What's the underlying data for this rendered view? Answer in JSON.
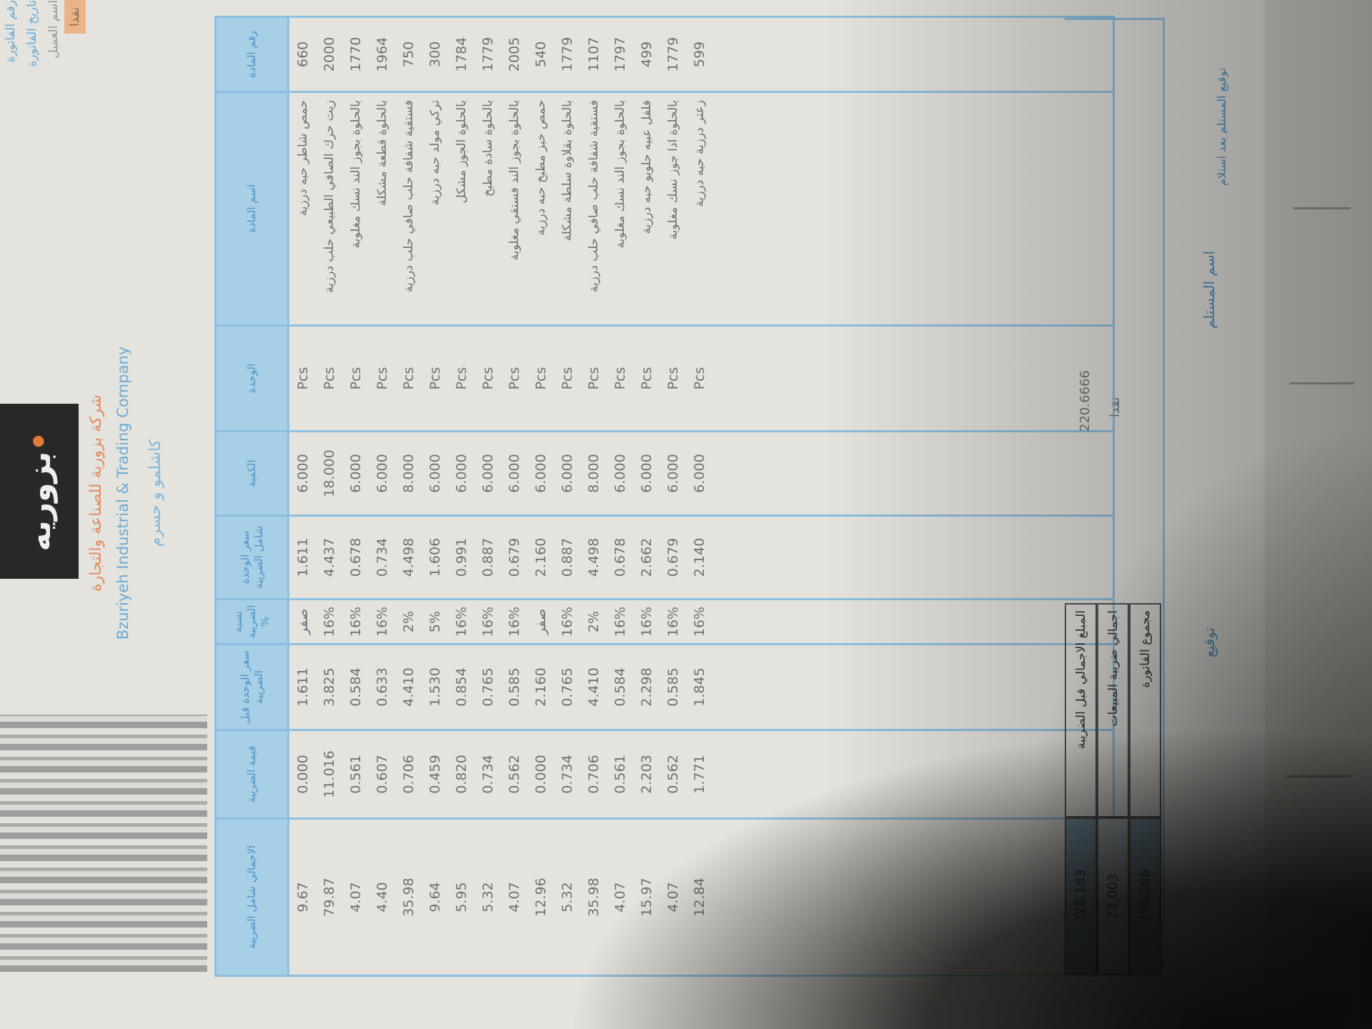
{
  "company": {
    "logo_text": "بزوريه",
    "name_ar": "شركة بزورية للصناعة والتجارة",
    "name_en": "Bzuriyeh Industrial & Trading Company",
    "subtitle": "كاشلمو و حسرم"
  },
  "info": {
    "lines": [
      "رقم الفاتورة",
      "تاريخ الفاتورة",
      "اسم العميل"
    ],
    "badge": "نقدا"
  },
  "table": {
    "headers": [
      "رقم المادة",
      "اسم المادة",
      "الوحدة",
      "الكمية",
      "سعر الوحدة شامل الضريبة",
      "نسبة الضريبة %",
      "سعر الوحدة قبل الضريبة",
      "قيمة الضريبة",
      "الاجمالي شامل الضريبة"
    ],
    "rows": [
      [
        "660",
        "حمص شاطر حبه درزية",
        "Pcs",
        "6.000",
        "1.611",
        "صفر",
        "1.611",
        "0.000",
        "9.67"
      ],
      [
        "2000",
        "زيت حرك الصافي الطبيعي حلب درزية",
        "Pcs",
        "18.000",
        "4.437",
        "16%",
        "3.825",
        "11.016",
        "79.87"
      ],
      [
        "1770",
        "بالحلوة بجوز الند نسك مغلوبة",
        "Pcs",
        "6.000",
        "0.678",
        "16%",
        "0.584",
        "0.561",
        "4.07"
      ],
      [
        "1964",
        "بالحلوة قطعة مشكلة",
        "Pcs",
        "6.000",
        "0.734",
        "16%",
        "0.633",
        "0.607",
        "4.40"
      ],
      [
        "750",
        "فستقية شفافة حلب صافي حلب درزية",
        "Pcs",
        "8.000",
        "4.498",
        "2%",
        "4.410",
        "0.706",
        "35.98"
      ],
      [
        "300",
        "تركي مولد حبه درزية",
        "Pcs",
        "6.000",
        "1.606",
        "5%",
        "1.530",
        "0.459",
        "9.64"
      ],
      [
        "1784",
        "بالحلوة الجوز مشكل",
        "Pcs",
        "6.000",
        "0.991",
        "16%",
        "0.854",
        "0.820",
        "5.95"
      ],
      [
        "1779",
        "بالحلوة سادة مطبخ",
        "Pcs",
        "6.000",
        "0.887",
        "16%",
        "0.765",
        "0.734",
        "5.32"
      ],
      [
        "2005",
        "بالحلوة بجوز الند فستقي مغلوبة",
        "Pcs",
        "6.000",
        "0.679",
        "16%",
        "0.585",
        "0.562",
        "4.07"
      ],
      [
        "540",
        "حمص خبز مطبخ حبه درزية",
        "Pcs",
        "6.000",
        "2.160",
        "صفر",
        "2.160",
        "0.000",
        "12.96"
      ],
      [
        "1779",
        "بالحلوة بقلاوة سلطة مشكلة",
        "Pcs",
        "6.000",
        "0.887",
        "16%",
        "0.765",
        "0.734",
        "5.32"
      ],
      [
        "1107",
        "فستقية شفافة حلب صافي حلب درزية",
        "Pcs",
        "8.000",
        "4.498",
        "2%",
        "4.410",
        "0.706",
        "35.98"
      ],
      [
        "1797",
        "بالحلوة بجوز الند نسك مغلوبة",
        "Pcs",
        "6.000",
        "0.678",
        "16%",
        "0.584",
        "0.561",
        "4.07"
      ],
      [
        "499",
        "فلفل عبيه حلويو حبه درزية",
        "Pcs",
        "6.000",
        "2.662",
        "16%",
        "2.298",
        "2.203",
        "15.97"
      ],
      [
        "1779",
        "بالحلوة ادا جوز نسك مغلوبة",
        "Pcs",
        "6.000",
        "0.679",
        "16%",
        "0.585",
        "0.562",
        "4.07"
      ],
      [
        "599",
        "زعتر درزية حبه درزية",
        "Pcs",
        "6.000",
        "2.140",
        "16%",
        "1.845",
        "1.771",
        "12.84"
      ]
    ]
  },
  "footer": {
    "subtotal_label": "المبلغ الاجمالي قبل الضريبة",
    "subtotal_value": "228.183",
    "tax_label": "اجمالي ضريبة المبيعات",
    "tax_value": "22.003",
    "total_label": "مجموع الفاتورة",
    "total_value": "250.186",
    "middle_amount": "220.6666",
    "middle_note": "نقدا"
  },
  "signatures": {
    "signature": "توقيع",
    "receiver_name": "اسم المستلم",
    "receiver_note": "توقيع المستلم بعد استلام"
  },
  "colors": {
    "header_blue": "#a7cfe6",
    "line_blue": "#8dbfe0",
    "brand_orange": "#e38a5b"
  }
}
